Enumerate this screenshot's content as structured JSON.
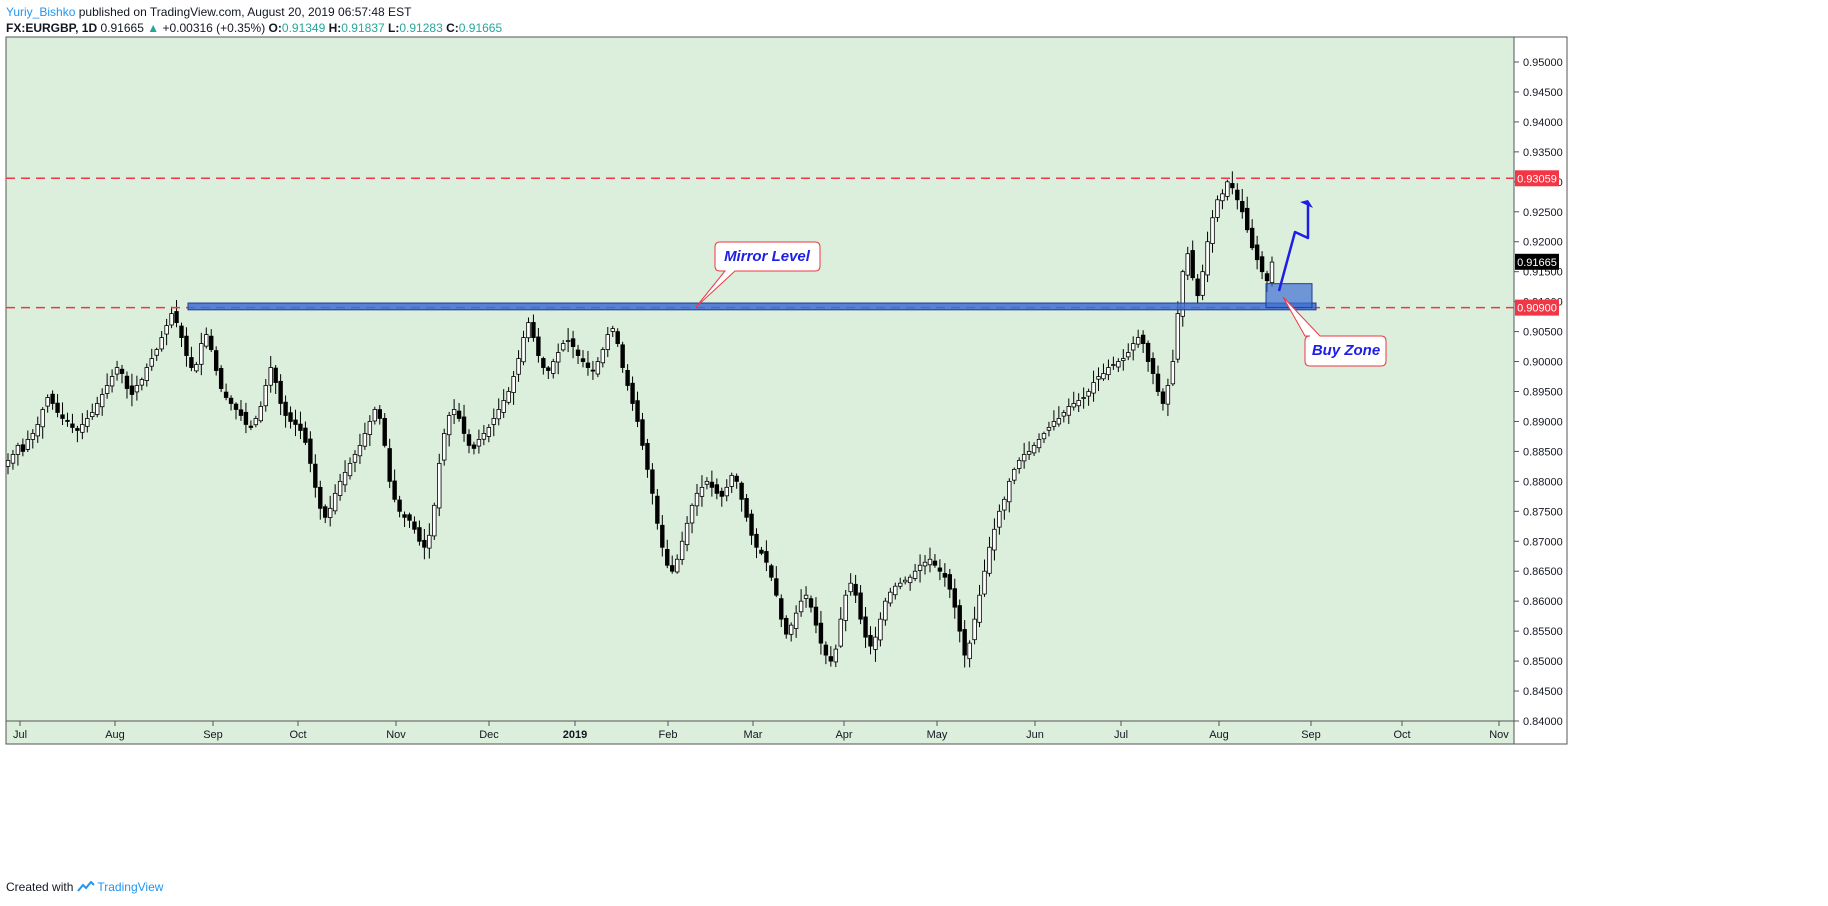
{
  "header": {
    "author": "Yuriy_Bishko",
    "published": "published on TradingView.com, August 20, 2019 06:57:48 EST",
    "symbol": "FX:EURGBP, 1D",
    "last": "0.91665",
    "change": "+0.00316 (+0.35%)",
    "open_label": "O:",
    "open": "0.91349",
    "high_label": "H:",
    "high": "0.91837",
    "low_label": "L:",
    "low": "0.91283",
    "close_label": "C:",
    "close": "0.91665"
  },
  "footer": {
    "created": "Created with",
    "brand": "TradingView"
  },
  "colors": {
    "background": "#dcefdc",
    "resistance": "#f23645",
    "zone": "#3f6fd1",
    "arrow": "#1e1ee6",
    "callout_border": "#f23645"
  },
  "annotations": {
    "mirror_level": "Mirror Level",
    "buy_zone": "Buy Zone"
  },
  "chart_data": {
    "type": "candlestick",
    "title": "",
    "y_ticks": [
      "0.95000",
      "0.94500",
      "0.94000",
      "0.93500",
      "0.93000",
      "0.92500",
      "0.92000",
      "0.91500",
      "0.91000",
      "0.90500",
      "0.90000",
      "0.89500",
      "0.89000",
      "0.88500",
      "0.88000",
      "0.87500",
      "0.87000",
      "0.86500",
      "0.86000",
      "0.85500",
      "0.85000",
      "0.84500",
      "0.84000"
    ],
    "ylim": [
      0.84,
      0.9545
    ],
    "x_ticks": [
      "Jul",
      "Aug",
      "Sep",
      "Oct",
      "Nov",
      "Dec",
      "2019",
      "Feb",
      "Mar",
      "Apr",
      "May",
      "Jun",
      "Jul",
      "Aug",
      "Sep",
      "Oct",
      "Nov"
    ],
    "horizontal_lines": [
      {
        "value": 0.93059,
        "label": "0.93059",
        "style": "dashed"
      },
      {
        "value": 0.909,
        "label": "0.90900",
        "style": "dashed"
      }
    ],
    "last_price": {
      "value": 0.91665,
      "label": "0.91665"
    },
    "mirror_level_zone": [
      0.9088,
      0.9096
    ],
    "buy_zone": [
      0.909,
      0.913
    ],
    "close_series": [
      0.8835,
      0.8845,
      0.886,
      0.885,
      0.887,
      0.888,
      0.8895,
      0.892,
      0.894,
      0.893,
      0.8915,
      0.8905,
      0.89,
      0.889,
      0.8885,
      0.8895,
      0.8905,
      0.8915,
      0.893,
      0.8945,
      0.896,
      0.8975,
      0.899,
      0.898,
      0.8955,
      0.8945,
      0.896,
      0.897,
      0.899,
      0.9005,
      0.902,
      0.904,
      0.906,
      0.908,
      0.9065,
      0.904,
      0.901,
      0.899,
      0.8995,
      0.903,
      0.9045,
      0.902,
      0.8985,
      0.8955,
      0.894,
      0.893,
      0.892,
      0.891,
      0.8895,
      0.889,
      0.8905,
      0.8925,
      0.896,
      0.899,
      0.8965,
      0.893,
      0.891,
      0.89,
      0.8895,
      0.8885,
      0.8865,
      0.883,
      0.879,
      0.8755,
      0.874,
      0.8755,
      0.878,
      0.88,
      0.8815,
      0.883,
      0.8845,
      0.886,
      0.888,
      0.89,
      0.892,
      0.8905,
      0.886,
      0.88,
      0.877,
      0.875,
      0.874,
      0.8735,
      0.872,
      0.87,
      0.869,
      0.871,
      0.876,
      0.883,
      0.888,
      0.891,
      0.892,
      0.8905,
      0.888,
      0.886,
      0.8855,
      0.887,
      0.888,
      0.889,
      0.8905,
      0.892,
      0.8935,
      0.895,
      0.8975,
      0.9005,
      0.904,
      0.9065,
      0.904,
      0.901,
      0.899,
      0.8985,
      0.9,
      0.9015,
      0.903,
      0.9035,
      0.9025,
      0.901,
      0.9,
      0.899,
      0.8985,
      0.9,
      0.902,
      0.9045,
      0.9055,
      0.903,
      0.899,
      0.896,
      0.893,
      0.89,
      0.886,
      0.882,
      0.878,
      0.873,
      0.869,
      0.866,
      0.865,
      0.867,
      0.87,
      0.873,
      0.876,
      0.878,
      0.879,
      0.88,
      0.879,
      0.878,
      0.8775,
      0.879,
      0.881,
      0.88,
      0.877,
      0.874,
      0.871,
      0.869,
      0.868,
      0.8665,
      0.864,
      0.861,
      0.857,
      0.8545,
      0.856,
      0.858,
      0.86,
      0.861,
      0.859,
      0.856,
      0.853,
      0.851,
      0.85,
      0.852,
      0.857,
      0.861,
      0.863,
      0.861,
      0.857,
      0.854,
      0.8525,
      0.854,
      0.857,
      0.86,
      0.8615,
      0.8625,
      0.863,
      0.8635,
      0.864,
      0.865,
      0.866,
      0.8665,
      0.867,
      0.866,
      0.865,
      0.864,
      0.862,
      0.859,
      0.855,
      0.851,
      0.853,
      0.857,
      0.861,
      0.865,
      0.869,
      0.872,
      0.875,
      0.877,
      0.88,
      0.882,
      0.8835,
      0.8845,
      0.885,
      0.886,
      0.887,
      0.888,
      0.889,
      0.89,
      0.8905,
      0.8915,
      0.8925,
      0.893,
      0.8935,
      0.894,
      0.895,
      0.8965,
      0.8975,
      0.898,
      0.899,
      0.8995,
      0.9,
      0.9005,
      0.9015,
      0.903,
      0.904,
      0.903,
      0.9,
      0.898,
      0.895,
      0.893,
      0.896,
      0.9,
      0.908,
      0.915,
      0.918,
      0.914,
      0.911,
      0.915,
      0.92,
      0.924,
      0.927,
      0.928,
      0.93,
      0.929,
      0.927,
      0.925,
      0.922,
      0.919,
      0.917,
      0.915,
      0.9135,
      0.9166
    ]
  }
}
